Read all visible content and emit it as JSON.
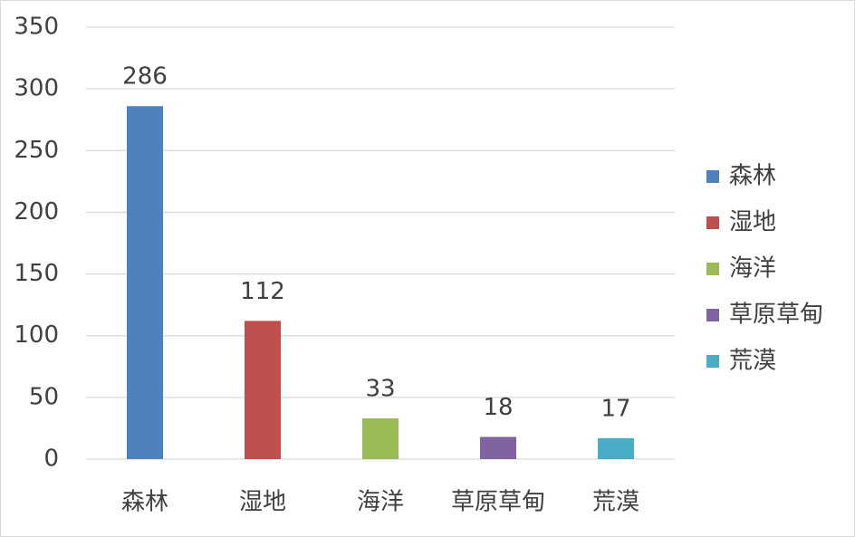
{
  "chart_data": {
    "type": "bar",
    "categories": [
      "森林",
      "湿地",
      "海洋",
      "草原草甸",
      "荒漠"
    ],
    "values": [
      286,
      112,
      33,
      18,
      17
    ],
    "colors": [
      "#4f81bd",
      "#c0504d",
      "#9bbb59",
      "#8064a2",
      "#4bacc6"
    ],
    "ylim": [
      0,
      350
    ],
    "yticks": [
      0,
      50,
      100,
      150,
      200,
      250,
      300,
      350
    ],
    "grid": true,
    "legend": "right"
  }
}
